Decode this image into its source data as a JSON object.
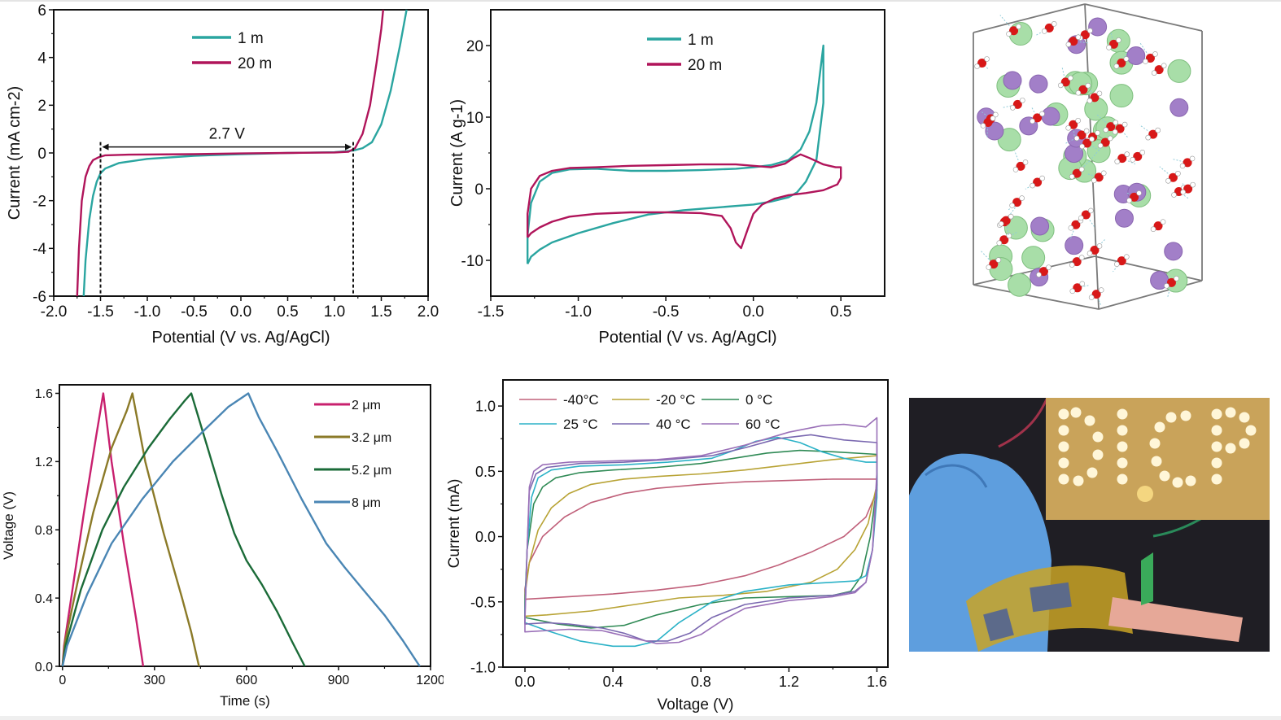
{
  "figure": {
    "panels": [
      "electrochemical-window",
      "cyclic-voltammetry-salt",
      "md-snapshot",
      "charge-discharge",
      "cv-temperature",
      "device-photo"
    ]
  },
  "colors": {
    "teal": "#2aa5a0",
    "crimson": "#b0145a",
    "magenta": "#c8206e",
    "olive": "#8b7a28",
    "darkgreen": "#1b6b38",
    "steelblue": "#4a86b4",
    "t_m40": "#c0607a",
    "t_m20": "#b8a335",
    "t_0": "#2f8a55",
    "t_25": "#2bb2c7",
    "t_40": "#7a68b0",
    "t_60": "#9a70b8"
  },
  "chart_data": [
    {
      "id": "lsv",
      "type": "line",
      "title": "",
      "xlabel": "Potential (V vs. Ag/AgCl)",
      "ylabel": "Current (mA cm-2)",
      "ylabel_sup": "-2",
      "xlim": [
        -2.0,
        2.0
      ],
      "ylim": [
        -6,
        6
      ],
      "xticks": [
        "-2.0",
        "-1.5",
        "-1.0",
        "-0.5",
        "0.0",
        "0.5",
        "1.0",
        "1.5",
        "2.0"
      ],
      "xtick_values": [
        -2.0,
        -1.5,
        -1.0,
        -0.5,
        0.0,
        0.5,
        1.0,
        1.5,
        2.0
      ],
      "yticks": [
        "-6",
        "-4",
        "-2",
        "0",
        "2",
        "4",
        "6"
      ],
      "ytick_values": [
        -6,
        -4,
        -2,
        0,
        2,
        4,
        6
      ],
      "legend": "top-center",
      "annotation": {
        "text": "2.7 V",
        "from": -1.5,
        "to": 1.2
      },
      "series": [
        {
          "name": "1 m",
          "color": "teal",
          "x": [
            -1.68,
            -1.66,
            -1.62,
            -1.58,
            -1.54,
            -1.5,
            -1.45,
            -1.3,
            -1.0,
            -0.5,
            0.0,
            0.5,
            1.0,
            1.2,
            1.3,
            1.4,
            1.5,
            1.6,
            1.7,
            1.77
          ],
          "y": [
            -6,
            -4.5,
            -2.8,
            -1.8,
            -1.2,
            -0.85,
            -0.65,
            -0.42,
            -0.25,
            -0.12,
            -0.05,
            0.0,
            0.03,
            0.1,
            0.2,
            0.45,
            1.2,
            2.6,
            4.5,
            6
          ]
        },
        {
          "name": "20 m",
          "color": "crimson",
          "x": [
            -1.75,
            -1.73,
            -1.7,
            -1.66,
            -1.62,
            -1.58,
            -1.52,
            -1.45,
            -1.2,
            -0.5,
            0.0,
            0.5,
            1.0,
            1.15,
            1.22,
            1.3,
            1.38,
            1.45,
            1.5,
            1.52
          ],
          "y": [
            -6,
            -4.0,
            -2.0,
            -1.0,
            -0.55,
            -0.3,
            -0.18,
            -0.1,
            -0.07,
            -0.05,
            -0.02,
            0.0,
            0.02,
            0.05,
            0.2,
            0.8,
            2.0,
            3.8,
            5.2,
            6
          ]
        }
      ]
    },
    {
      "id": "cv-salt",
      "type": "line",
      "xlabel": "Potential (V vs. Ag/AgCl)",
      "ylabel": "Current (A g-1)",
      "ylabel_sup": "-1",
      "xlim": [
        -1.5,
        0.75
      ],
      "ylim": [
        -15,
        25
      ],
      "xticks": [
        "-1.5",
        "-1.0",
        "-0.5",
        "0.0",
        "0.5"
      ],
      "xtick_values": [
        -1.5,
        -1.0,
        -0.5,
        0.0,
        0.5
      ],
      "yticks": [
        "-10",
        "0",
        "10",
        "20"
      ],
      "ytick_values": [
        -10,
        0,
        10,
        20
      ],
      "legend": "top-center",
      "series": [
        {
          "name": "1 m",
          "color": "teal",
          "x": [
            -1.29,
            -1.29,
            -1.27,
            -1.22,
            -1.15,
            -1.05,
            -0.9,
            -0.7,
            -0.5,
            -0.3,
            -0.1,
            0.0,
            0.1,
            0.2,
            0.27,
            0.32,
            0.36,
            0.38,
            0.4,
            0.4,
            0.4,
            0.36,
            0.3,
            0.25,
            0.2,
            0.1,
            0.0,
            -0.2,
            -0.4,
            -0.6,
            -0.8,
            -1.0,
            -1.15,
            -1.22,
            -1.27,
            -1.29
          ],
          "y": [
            -10.5,
            -6.5,
            -2.0,
            1.0,
            2.2,
            2.7,
            2.8,
            2.5,
            2.5,
            2.6,
            2.8,
            3.0,
            3.3,
            4.0,
            5.5,
            8.0,
            12.0,
            16.0,
            20.0,
            16.5,
            12.0,
            4.0,
            1.0,
            -0.5,
            -1.2,
            -1.8,
            -2.2,
            -2.6,
            -3.0,
            -3.6,
            -4.8,
            -6.2,
            -7.5,
            -8.5,
            -9.5,
            -10.5
          ]
        },
        {
          "name": "20 m",
          "color": "crimson",
          "x": [
            -1.29,
            -1.29,
            -1.27,
            -1.22,
            -1.15,
            -1.05,
            -0.9,
            -0.7,
            -0.5,
            -0.3,
            -0.1,
            0.0,
            0.1,
            0.18,
            0.23,
            0.27,
            0.32,
            0.4,
            0.47,
            0.5,
            0.5,
            0.48,
            0.4,
            0.3,
            0.2,
            0.12,
            0.05,
            0.0,
            -0.03,
            -0.07,
            -0.1,
            -0.13,
            -0.18,
            -0.3,
            -0.5,
            -0.7,
            -0.9,
            -1.05,
            -1.15,
            -1.22,
            -1.27,
            -1.29
          ],
          "y": [
            -6.8,
            -3.5,
            0.0,
            1.8,
            2.5,
            2.9,
            3.0,
            3.2,
            3.3,
            3.4,
            3.4,
            3.2,
            3.0,
            3.5,
            4.3,
            4.8,
            4.3,
            3.4,
            3.0,
            3.0,
            1.5,
            0.6,
            -0.2,
            -0.6,
            -0.9,
            -1.4,
            -2.2,
            -3.5,
            -5.5,
            -8.3,
            -7.5,
            -5.5,
            -3.8,
            -3.4,
            -3.3,
            -3.3,
            -3.5,
            -3.9,
            -4.6,
            -5.4,
            -6.2,
            -6.8
          ]
        }
      ]
    },
    {
      "id": "gcd",
      "type": "line",
      "xlabel": "Time (s)",
      "ylabel": "Voltage (V)",
      "xlim": [
        -10,
        1200
      ],
      "ylim": [
        0,
        1.65
      ],
      "xticks": [
        "0",
        "300",
        "600",
        "900",
        "1200"
      ],
      "xtick_values": [
        0,
        300,
        600,
        900,
        1200
      ],
      "yticks": [
        "0.0",
        "0.4",
        "0.8",
        "1.2",
        "1.6"
      ],
      "ytick_values": [
        0.0,
        0.4,
        0.8,
        1.2,
        1.6
      ],
      "legend": "top-right",
      "series": [
        {
          "name": "2 μm",
          "color": "magenta",
          "x": [
            0,
            5,
            30,
            70,
            110,
            133,
            133,
            160,
            200,
            240,
            263
          ],
          "y": [
            0,
            0.12,
            0.42,
            0.9,
            1.35,
            1.6,
            1.6,
            1.2,
            0.72,
            0.28,
            0
          ]
        },
        {
          "name": "3.2 μm",
          "color": "olive",
          "x": [
            0,
            8,
            50,
            100,
            160,
            210,
            228,
            228,
            270,
            330,
            390,
            420,
            445
          ],
          "y": [
            0,
            0.14,
            0.5,
            0.9,
            1.28,
            1.5,
            1.6,
            1.6,
            1.2,
            0.78,
            0.4,
            0.2,
            0
          ]
        },
        {
          "name": "5.2 μm",
          "color": "darkgreen",
          "x": [
            0,
            10,
            60,
            130,
            200,
            280,
            350,
            400,
            420,
            420,
            470,
            520,
            560,
            600,
            650,
            700,
            750,
            790
          ],
          "y": [
            0,
            0.12,
            0.45,
            0.8,
            1.05,
            1.28,
            1.45,
            1.56,
            1.6,
            1.6,
            1.3,
            1.0,
            0.78,
            0.62,
            0.48,
            0.32,
            0.14,
            0
          ]
        },
        {
          "name": "8 μm",
          "color": "steelblue",
          "x": [
            0,
            15,
            80,
            160,
            260,
            360,
            460,
            540,
            606,
            606,
            640,
            700,
            780,
            860,
            920,
            980,
            1050,
            1110,
            1165
          ],
          "y": [
            0,
            0.12,
            0.42,
            0.72,
            0.98,
            1.2,
            1.38,
            1.52,
            1.6,
            1.6,
            1.46,
            1.26,
            0.98,
            0.72,
            0.58,
            0.45,
            0.3,
            0.15,
            0
          ]
        }
      ]
    },
    {
      "id": "cv-temp",
      "type": "line",
      "xlabel": "Voltage (V)",
      "ylabel": "Current (mA)",
      "xlim": [
        -0.1,
        1.65
      ],
      "ylim": [
        -1.0,
        1.2
      ],
      "xticks": [
        "0.0",
        "0.4",
        "0.8",
        "1.2",
        "1.6"
      ],
      "xtick_values": [
        0.0,
        0.4,
        0.8,
        1.2,
        1.6
      ],
      "yticks": [
        "-1.0",
        "-0.5",
        "0.0",
        "0.5",
        "1.0"
      ],
      "ytick_values": [
        -1.0,
        -0.5,
        0.0,
        0.5,
        1.0
      ],
      "legend": "top-left-two-rows",
      "series": [
        {
          "name": "-40°C",
          "color": "t_m40",
          "x": [
            0,
            0.02,
            0.08,
            0.18,
            0.3,
            0.45,
            0.6,
            0.8,
            1.0,
            1.2,
            1.4,
            1.6,
            1.6,
            1.55,
            1.45,
            1.3,
            1.15,
            1.0,
            0.8,
            0.6,
            0.4,
            0.2,
            0.0,
            0.0
          ],
          "y": [
            -0.4,
            -0.2,
            0.0,
            0.15,
            0.26,
            0.33,
            0.37,
            0.4,
            0.42,
            0.43,
            0.44,
            0.44,
            0.35,
            0.15,
            0.0,
            -0.12,
            -0.22,
            -0.3,
            -0.37,
            -0.41,
            -0.44,
            -0.46,
            -0.48,
            -0.4
          ]
        },
        {
          "name": "-20 °C",
          "color": "t_m20",
          "x": [
            0,
            0.02,
            0.06,
            0.12,
            0.2,
            0.3,
            0.45,
            0.6,
            0.8,
            1.0,
            1.2,
            1.4,
            1.6,
            1.6,
            1.56,
            1.5,
            1.42,
            1.3,
            1.1,
            0.9,
            0.7,
            0.5,
            0.3,
            0.1,
            0.0,
            0.0
          ],
          "y": [
            -0.45,
            -0.2,
            0.05,
            0.22,
            0.33,
            0.4,
            0.44,
            0.46,
            0.48,
            0.51,
            0.55,
            0.59,
            0.62,
            0.4,
            0.1,
            -0.1,
            -0.25,
            -0.35,
            -0.42,
            -0.45,
            -0.47,
            -0.52,
            -0.57,
            -0.6,
            -0.61,
            -0.45
          ]
        },
        {
          "name": "0 °C",
          "color": "t_0",
          "x": [
            0,
            0.01,
            0.04,
            0.08,
            0.14,
            0.25,
            0.4,
            0.6,
            0.8,
            0.95,
            1.1,
            1.25,
            1.4,
            1.6,
            1.6,
            1.57,
            1.53,
            1.48,
            1.4,
            1.2,
            1.0,
            0.8,
            0.6,
            0.45,
            0.3,
            0.15,
            0.0,
            0.0
          ],
          "y": [
            -0.5,
            -0.1,
            0.25,
            0.38,
            0.45,
            0.49,
            0.51,
            0.53,
            0.56,
            0.6,
            0.64,
            0.66,
            0.65,
            0.63,
            0.4,
            0.0,
            -0.3,
            -0.42,
            -0.45,
            -0.46,
            -0.47,
            -0.52,
            -0.6,
            -0.68,
            -0.7,
            -0.67,
            -0.62,
            -0.5
          ]
        },
        {
          "name": "25 °C",
          "color": "t_25",
          "x": [
            0,
            0.01,
            0.03,
            0.06,
            0.12,
            0.25,
            0.45,
            0.65,
            0.85,
            0.95,
            1.05,
            1.15,
            1.25,
            1.35,
            1.45,
            1.55,
            1.6,
            1.6,
            1.58,
            1.55,
            1.5,
            1.4,
            1.2,
            1.0,
            0.85,
            0.7,
            0.6,
            0.5,
            0.4,
            0.25,
            0.1,
            0.0,
            0.0
          ],
          "y": [
            -0.55,
            -0.1,
            0.3,
            0.45,
            0.51,
            0.54,
            0.55,
            0.57,
            0.6,
            0.66,
            0.73,
            0.76,
            0.72,
            0.65,
            0.6,
            0.57,
            0.57,
            0.3,
            -0.1,
            -0.3,
            -0.34,
            -0.35,
            -0.37,
            -0.42,
            -0.5,
            -0.66,
            -0.8,
            -0.84,
            -0.84,
            -0.8,
            -0.72,
            -0.66,
            -0.55
          ]
        },
        {
          "name": "40 °C",
          "color": "t_40",
          "x": [
            0,
            0.01,
            0.02,
            0.05,
            0.1,
            0.25,
            0.45,
            0.65,
            0.85,
            1.0,
            1.15,
            1.3,
            1.45,
            1.6,
            1.6,
            1.58,
            1.55,
            1.5,
            1.4,
            1.2,
            1.0,
            0.85,
            0.75,
            0.65,
            0.55,
            0.45,
            0.35,
            0.2,
            0.1,
            0.0,
            0.0
          ],
          "y": [
            -0.6,
            -0.1,
            0.35,
            0.48,
            0.53,
            0.56,
            0.57,
            0.59,
            0.62,
            0.68,
            0.75,
            0.78,
            0.74,
            0.72,
            0.4,
            -0.1,
            -0.35,
            -0.42,
            -0.45,
            -0.47,
            -0.52,
            -0.62,
            -0.74,
            -0.8,
            -0.8,
            -0.74,
            -0.7,
            -0.67,
            -0.66,
            -0.67,
            -0.6
          ]
        },
        {
          "name": "60 °C",
          "color": "t_60",
          "x": [
            0,
            0.01,
            0.02,
            0.04,
            0.08,
            0.2,
            0.4,
            0.6,
            0.8,
            1.0,
            1.2,
            1.35,
            1.45,
            1.55,
            1.6,
            1.6,
            1.58,
            1.55,
            1.5,
            1.4,
            1.2,
            1.0,
            0.9,
            0.8,
            0.7,
            0.6,
            0.5,
            0.35,
            0.2,
            0.0,
            0.0
          ],
          "y": [
            -0.65,
            -0.1,
            0.38,
            0.5,
            0.55,
            0.57,
            0.58,
            0.59,
            0.62,
            0.7,
            0.8,
            0.85,
            0.86,
            0.84,
            0.91,
            0.5,
            -0.1,
            -0.35,
            -0.43,
            -0.46,
            -0.49,
            -0.55,
            -0.64,
            -0.75,
            -0.81,
            -0.82,
            -0.78,
            -0.72,
            -0.71,
            -0.73,
            -0.65
          ]
        }
      ]
    }
  ],
  "md_snapshot": {
    "legend_colors": {
      "green_atom": "#a8dea8",
      "purple_atom": "#a27fc8",
      "oxygen": "#d81818",
      "hydrogen": "#ffffff",
      "hbond": "#8fcbd8",
      "box": "#7a7a7a"
    }
  },
  "device_photo": {
    "sign_text": "DICP",
    "glove_color": "#5e9ede",
    "sign_color": "#c9a35a",
    "background_color": "#1f1e24"
  }
}
